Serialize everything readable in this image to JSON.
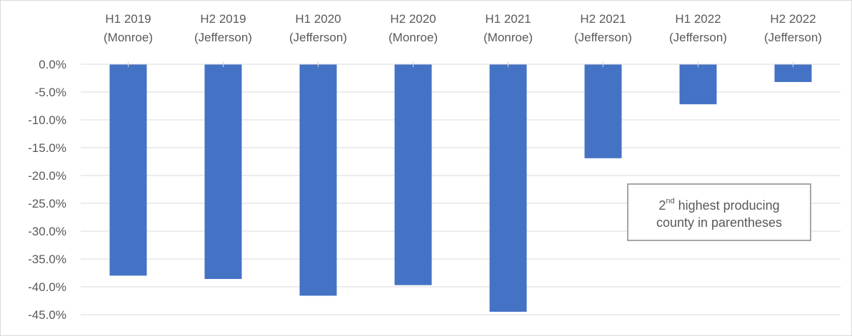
{
  "chart_data": {
    "type": "bar",
    "categories": [
      [
        "H1 2019",
        "(Monroe)"
      ],
      [
        "H2 2019",
        "(Jefferson)"
      ],
      [
        "H1 2020",
        "(Jefferson)"
      ],
      [
        "H2 2020",
        "(Monroe)"
      ],
      [
        "H1 2021",
        "(Monroe)"
      ],
      [
        "H2 2021",
        "(Jefferson)"
      ],
      [
        "H1 2022",
        "(Jefferson)"
      ],
      [
        "H2 2022",
        "(Jefferson)"
      ]
    ],
    "values": [
      -38.0,
      -38.6,
      -41.6,
      -39.7,
      -44.5,
      -16.9,
      -7.2,
      -3.2
    ],
    "ylim": [
      -45,
      0
    ],
    "yticks": [
      0,
      -5,
      -10,
      -15,
      -20,
      -25,
      -30,
      -35,
      -40,
      -45
    ],
    "ytick_labels": [
      "0.0%",
      "-5.0%",
      "-10.0%",
      "-15.0%",
      "-20.0%",
      "-25.0%",
      "-30.0%",
      "-35.0%",
      "-40.0%",
      "-45.0%"
    ],
    "title": "",
    "xlabel": "",
    "ylabel": "",
    "grid": true,
    "legend": "none",
    "x_axis_position": "top",
    "bar_color": "#4472c4",
    "gridline_color": "#d9d9d9"
  },
  "annotation": {
    "superscript_base": "2",
    "superscript": "nd",
    "line1_rest": " highest producing",
    "line2": "county in parentheses"
  }
}
